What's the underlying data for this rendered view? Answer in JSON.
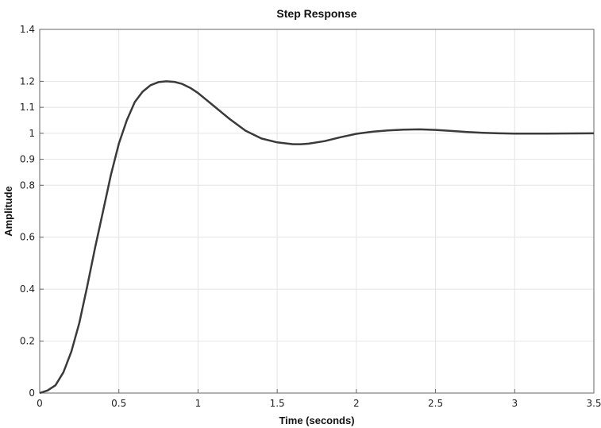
{
  "chart_data": {
    "type": "line",
    "title": "Step Response",
    "xlabel": "Time (seconds)",
    "ylabel": "Amplitude",
    "xlim": [
      0,
      3.5
    ],
    "ylim": [
      0,
      1.4
    ],
    "xticks": [
      0,
      0.5,
      1,
      1.5,
      2,
      2.5,
      3,
      3.5
    ],
    "xtick_labels": [
      "0",
      "0.5",
      "1",
      "1.5",
      "2",
      "2.5",
      "3",
      "3.5"
    ],
    "yticks": [
      0,
      0.2,
      0.4,
      0.6,
      0.8,
      0.9,
      1,
      1.1,
      1.2,
      1.4
    ],
    "ytick_labels": [
      "0",
      "0.2",
      "0.4",
      "0.6",
      "0.8",
      "0.9",
      "1",
      "1.1",
      "1.2",
      "1.4"
    ],
    "grid": true,
    "series": [
      {
        "color": "#3a3a3a",
        "x": [
          0,
          0.05,
          0.1,
          0.15,
          0.2,
          0.25,
          0.3,
          0.35,
          0.4,
          0.45,
          0.5,
          0.55,
          0.6,
          0.65,
          0.7,
          0.75,
          0.8,
          0.85,
          0.9,
          0.95,
          1.0,
          1.05,
          1.1,
          1.15,
          1.2,
          1.3,
          1.4,
          1.5,
          1.6,
          1.65,
          1.7,
          1.8,
          1.9,
          2.0,
          2.1,
          2.2,
          2.3,
          2.4,
          2.5,
          2.6,
          2.7,
          2.8,
          2.9,
          3.0,
          3.2,
          3.5
        ],
        "y": [
          0,
          0.01,
          0.03,
          0.08,
          0.16,
          0.27,
          0.41,
          0.56,
          0.7,
          0.84,
          0.96,
          1.05,
          1.12,
          1.16,
          1.185,
          1.197,
          1.2,
          1.198,
          1.19,
          1.175,
          1.155,
          1.13,
          1.105,
          1.08,
          1.055,
          1.01,
          0.98,
          0.965,
          0.958,
          0.958,
          0.96,
          0.97,
          0.985,
          0.998,
          1.006,
          1.011,
          1.014,
          1.015,
          1.013,
          1.009,
          1.005,
          1.002,
          1.0,
          0.999,
          0.999,
          1.0
        ]
      }
    ]
  }
}
